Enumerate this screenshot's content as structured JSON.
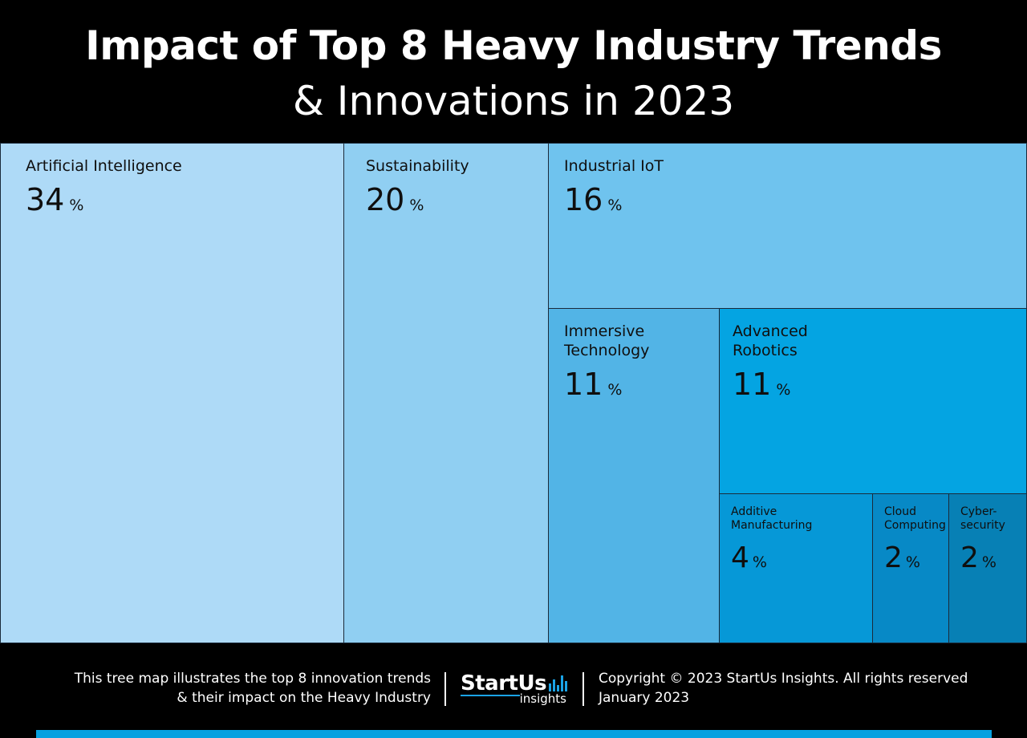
{
  "header": {
    "title": "Impact of Top 8 Heavy Industry Trends",
    "subtitle": "& Innovations in 2023"
  },
  "chart_data": {
    "type": "treemap",
    "unit": "%",
    "items": [
      {
        "label": "Artificial Intelligence",
        "value": 34,
        "color": "#aedaf7"
      },
      {
        "label": "Sustainability",
        "value": 20,
        "color": "#90cff2"
      },
      {
        "label": "Industrial IoT",
        "value": 16,
        "color": "#6fc3ee"
      },
      {
        "label": "Immersive\nTechnology",
        "value": 11,
        "color": "#52b4e6"
      },
      {
        "label": "Advanced\nRobotics",
        "value": 11,
        "color": "#04a4e2"
      },
      {
        "label": "Additive\nManufacturing",
        "value": 4,
        "color": "#0698d7"
      },
      {
        "label": "Cloud\nComputing",
        "value": 2,
        "color": "#0789c6"
      },
      {
        "label": "Cyber-\nsecurity",
        "value": 2,
        "color": "#0780b5"
      }
    ]
  },
  "footer": {
    "description_line1": "This tree map illustrates the top 8 innovation trends",
    "description_line2": "& their impact on the Heavy Industry",
    "logo_main": "StartUs",
    "logo_sub": "insights",
    "copyright": "Copyright © 2023 StartUs Insights. All rights reserved",
    "date": "January 2023"
  }
}
